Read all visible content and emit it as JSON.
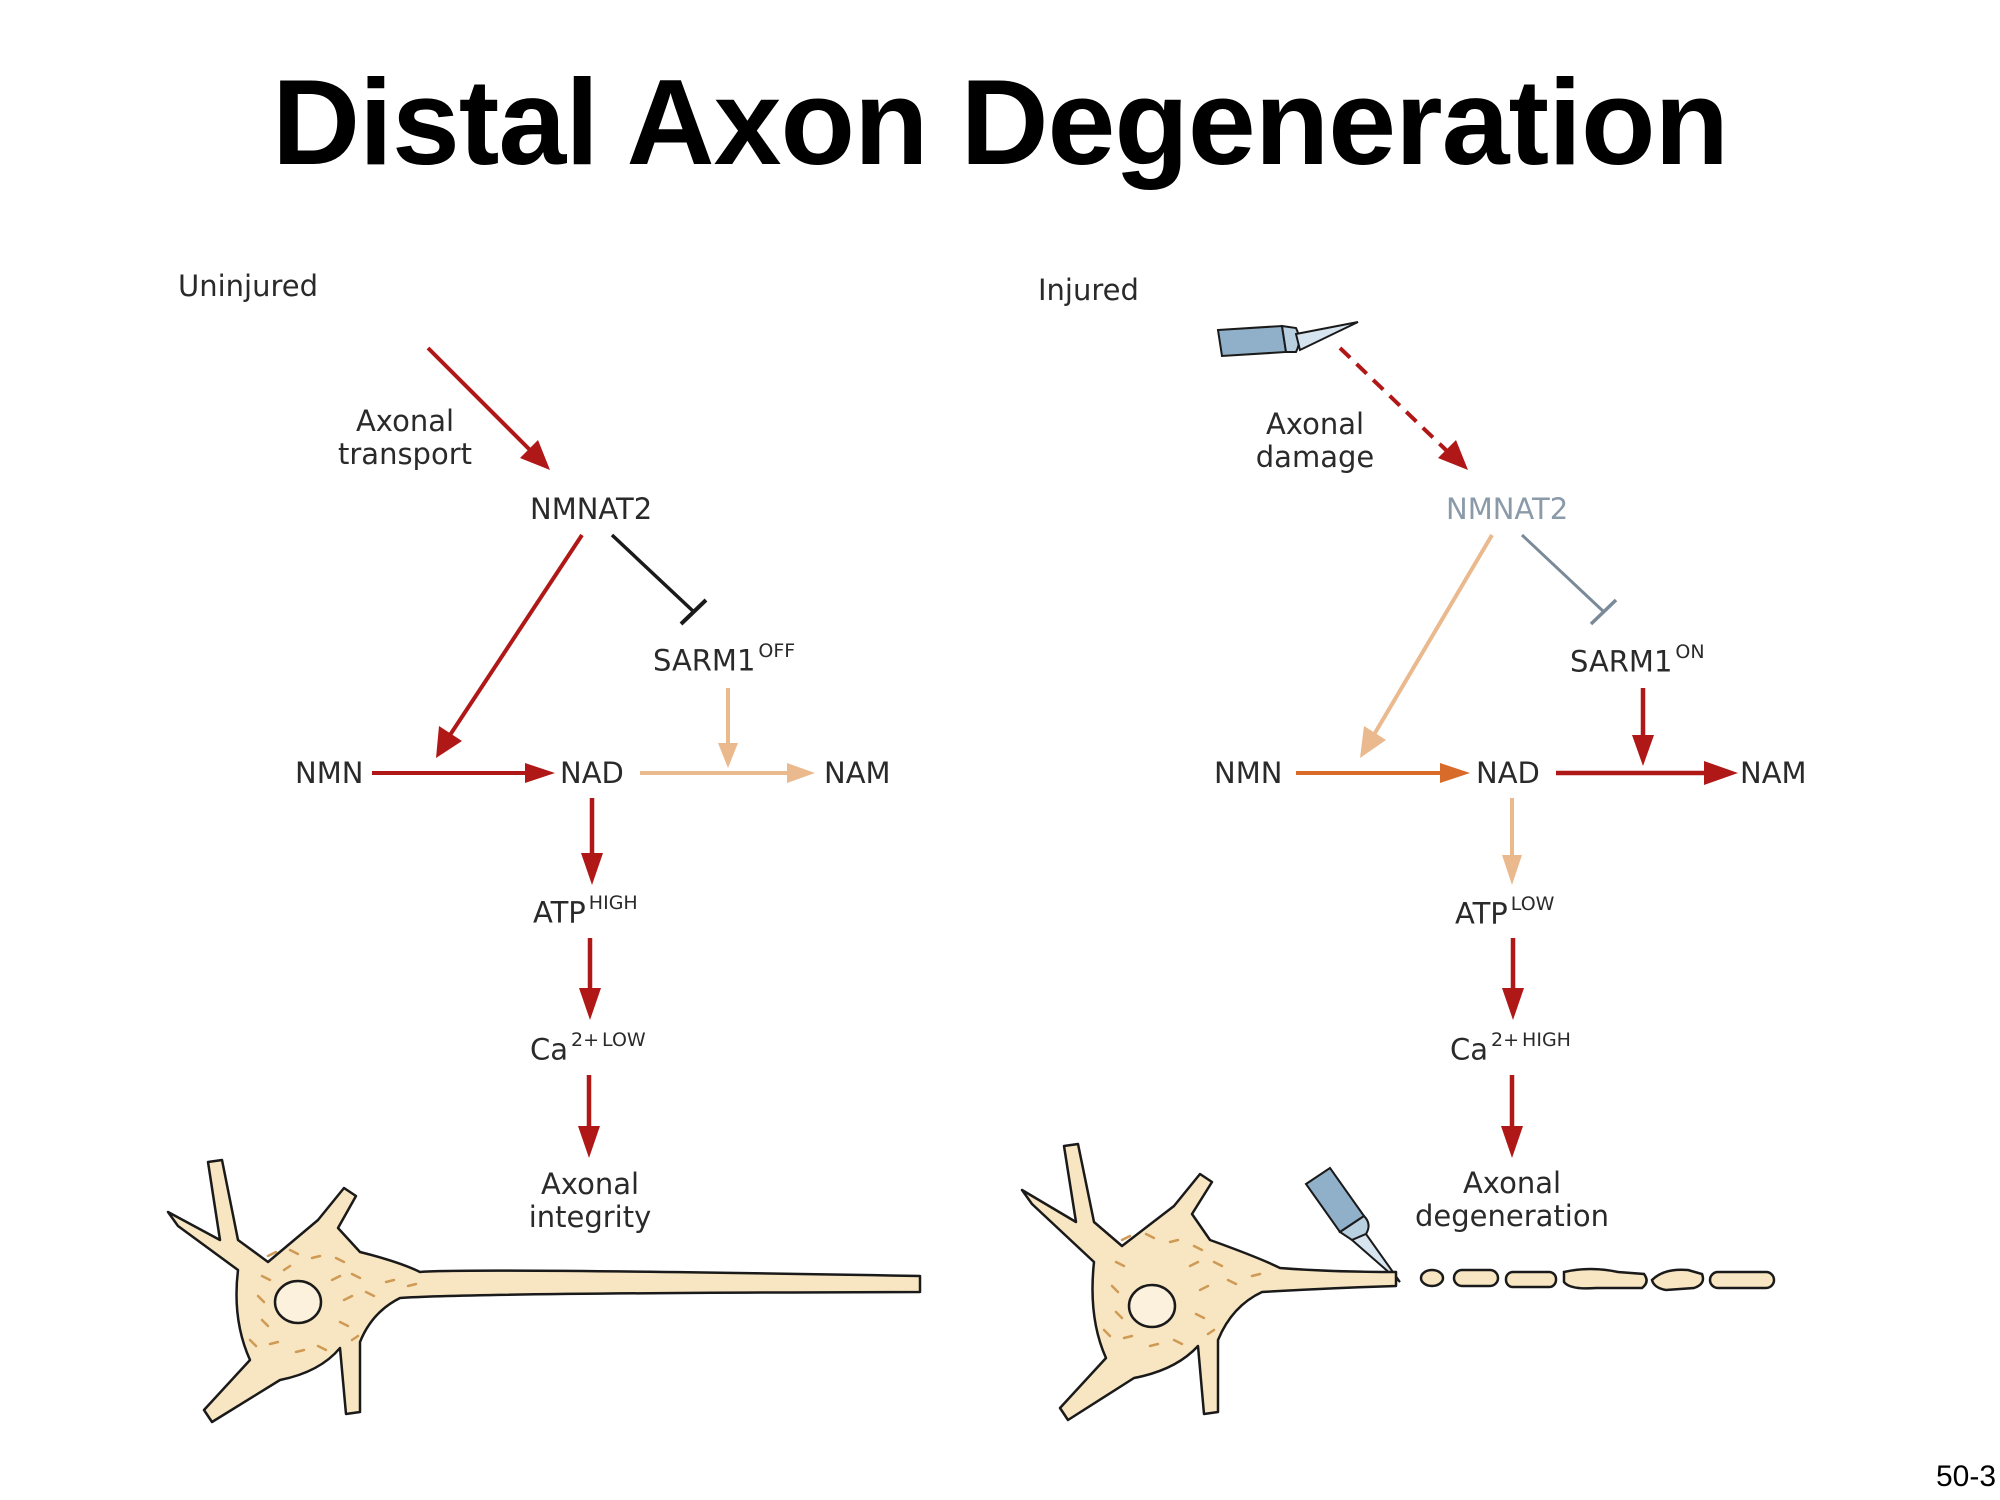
{
  "title": "Distal Axon Degeneration",
  "slide_number": "50-3",
  "colors": {
    "active_arrow": "#b01818",
    "inactive_arrow": "#eab98e",
    "intermediate_arrow": "#d86a2a",
    "inhibit_on": "#1a1a1a",
    "inhibit_off": "#7a8a98",
    "cell_fill": "#f8e6c2",
    "granules": "#cf9a55"
  },
  "uninjured": {
    "heading": "Uninjured",
    "input_label": [
      "Axonal",
      "transport"
    ],
    "nmnat2": "NMNAT2",
    "sarm1": "SARM1",
    "sarm1_state": "OFF",
    "nmn": "NMN",
    "nad": "NAD",
    "nam": "NAM",
    "atp": "ATP",
    "atp_state": "HIGH",
    "ca": "Ca",
    "ca_charge": "2+",
    "ca_state": "LOW",
    "outcome": [
      "Axonal",
      "integrity"
    ]
  },
  "injured": {
    "heading": "Injured",
    "input_label": [
      "Axonal",
      "damage"
    ],
    "nmnat2": "NMNAT2",
    "sarm1": "SARM1",
    "sarm1_state": "ON",
    "nmn": "NMN",
    "nad": "NAD",
    "nam": "NAM",
    "atp": "ATP",
    "atp_state": "LOW",
    "ca": "Ca",
    "ca_charge": "2+",
    "ca_state": "HIGH",
    "outcome": [
      "Axonal",
      "degeneration"
    ]
  }
}
